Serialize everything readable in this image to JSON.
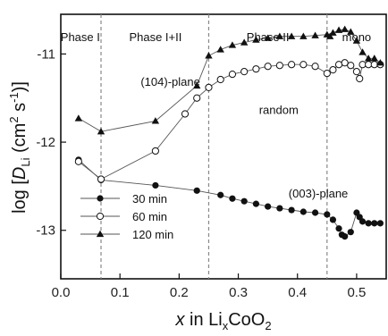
{
  "chart_data": {
    "type": "line",
    "xlabel": {
      "italic": "x",
      "text1": " in Li",
      "sub1": "x",
      "text2": "CoO",
      "sub2": "2"
    },
    "ylabel": {
      "pre": "log [",
      "D": "D",
      "Dsub": "Li",
      "mid": " (cm",
      "sup1": "2",
      "mid2": " s",
      "sup2": "-1",
      "post": ")]"
    },
    "xlim": [
      0.0,
      0.55
    ],
    "ylim": [
      -13.55,
      -10.55
    ],
    "x_ticks": [
      0.0,
      0.1,
      0.2,
      0.3,
      0.4,
      0.5
    ],
    "x_tick_labels": [
      "0.0",
      "0.1",
      "0.2",
      "0.3",
      "0.4",
      "0.5"
    ],
    "y_ticks": [
      -11,
      -12,
      -13
    ],
    "y_tick_labels": [
      "-11",
      "-12",
      "-13"
    ],
    "phase_boundaries": [
      0.068,
      0.25,
      0.45
    ],
    "phase_labels": [
      {
        "text": "Phase I",
        "x": 0.033
      },
      {
        "text": "Phase I+II",
        "x": 0.16
      },
      {
        "text": "Phase II",
        "x": 0.35
      },
      {
        "text": "mono",
        "x": 0.5
      }
    ],
    "annotations": [
      {
        "text": "(104)-plane",
        "x": 0.135,
        "y": -11.36
      },
      {
        "text": "random",
        "x": 0.335,
        "y": -11.68
      },
      {
        "text": "(003)-plane",
        "x": 0.385,
        "y": -12.63
      }
    ],
    "legend_position": "lower-left",
    "series": [
      {
        "name": "30 min",
        "marker": "filled-circle",
        "x": [
          0.03,
          0.068,
          0.16,
          0.23,
          0.27,
          0.29,
          0.31,
          0.33,
          0.35,
          0.37,
          0.39,
          0.41,
          0.43,
          0.45,
          0.46,
          0.47,
          0.475,
          0.48,
          0.49,
          0.5,
          0.505,
          0.51,
          0.52,
          0.53,
          0.54
        ],
        "y": [
          -12.2,
          -12.43,
          -12.49,
          -12.55,
          -12.6,
          -12.64,
          -12.67,
          -12.7,
          -12.73,
          -12.75,
          -12.77,
          -12.79,
          -12.8,
          -12.82,
          -12.88,
          -12.98,
          -13.05,
          -13.07,
          -13.02,
          -12.8,
          -12.85,
          -12.9,
          -12.92,
          -12.92,
          -12.92
        ]
      },
      {
        "name": "60 min",
        "marker": "open-circle",
        "x": [
          0.03,
          0.068,
          0.16,
          0.21,
          0.23,
          0.25,
          0.27,
          0.29,
          0.31,
          0.33,
          0.35,
          0.37,
          0.39,
          0.41,
          0.43,
          0.45,
          0.46,
          0.47,
          0.48,
          0.49,
          0.5,
          0.505,
          0.51,
          0.52,
          0.53,
          0.54
        ],
        "y": [
          -12.22,
          -12.42,
          -12.1,
          -11.68,
          -11.5,
          -11.38,
          -11.29,
          -11.23,
          -11.2,
          -11.17,
          -11.14,
          -11.13,
          -11.12,
          -11.12,
          -11.14,
          -11.22,
          -11.18,
          -11.12,
          -11.1,
          -11.13,
          -11.2,
          -11.28,
          -11.12,
          -11.12,
          -11.12,
          -11.12
        ]
      },
      {
        "name": "120 min",
        "marker": "filled-triangle",
        "x": [
          0.03,
          0.068,
          0.16,
          0.23,
          0.25,
          0.27,
          0.29,
          0.31,
          0.33,
          0.35,
          0.37,
          0.39,
          0.41,
          0.43,
          0.45,
          0.455,
          0.46,
          0.47,
          0.48,
          0.49,
          0.5,
          0.51,
          0.52,
          0.53,
          0.54
        ],
        "y": [
          -11.73,
          -11.88,
          -11.76,
          -11.36,
          -11.02,
          -10.95,
          -10.9,
          -10.87,
          -10.84,
          -10.82,
          -10.8,
          -10.8,
          -10.8,
          -10.79,
          -10.78,
          -10.8,
          -10.76,
          -10.73,
          -10.72,
          -10.75,
          -10.85,
          -10.98,
          -11.05,
          -11.05,
          -11.1
        ]
      }
    ]
  }
}
